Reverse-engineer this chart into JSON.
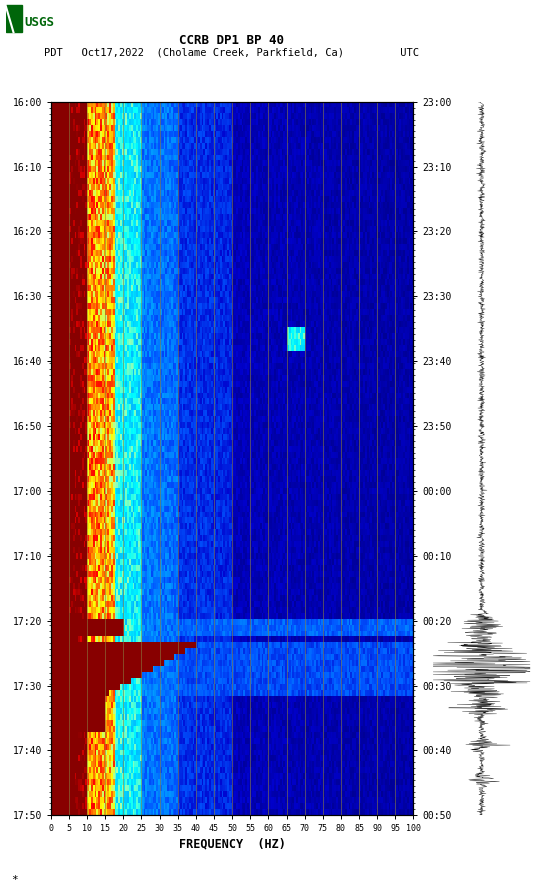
{
  "title_line1": "CCRB DP1 BP 40",
  "title_line2": "PDT   Oct17,2022  (Cholame Creek, Parkfield, Ca)         UTC",
  "xlabel": "FREQUENCY  (HZ)",
  "freq_ticks": [
    0,
    5,
    10,
    15,
    20,
    25,
    30,
    35,
    40,
    45,
    50,
    55,
    60,
    65,
    70,
    75,
    80,
    85,
    90,
    95,
    100
  ],
  "time_labels_left": [
    "16:00",
    "16:10",
    "16:20",
    "16:30",
    "16:40",
    "16:50",
    "17:00",
    "17:10",
    "17:20",
    "17:30",
    "17:40",
    "17:50"
  ],
  "time_labels_right": [
    "23:00",
    "23:10",
    "23:20",
    "23:30",
    "23:40",
    "23:50",
    "00:00",
    "00:10",
    "00:20",
    "00:30",
    "00:40",
    "00:50"
  ],
  "n_time": 120,
  "n_freq": 200,
  "freq_max": 100,
  "vertical_grid_lines": [
    5,
    10,
    15,
    20,
    25,
    30,
    35,
    40,
    45,
    50,
    55,
    60,
    65,
    70,
    75,
    80,
    85,
    90,
    95,
    100
  ],
  "background_color": "#ffffff",
  "cmap_colors": [
    [
      0.0,
      "#00006E"
    ],
    [
      0.1,
      "#0000CD"
    ],
    [
      0.22,
      "#0055FF"
    ],
    [
      0.35,
      "#00AAFF"
    ],
    [
      0.48,
      "#00FFFF"
    ],
    [
      0.58,
      "#AAFFAA"
    ],
    [
      0.65,
      "#FFFF00"
    ],
    [
      0.75,
      "#FF8800"
    ],
    [
      0.87,
      "#FF0000"
    ],
    [
      1.0,
      "#880000"
    ]
  ]
}
